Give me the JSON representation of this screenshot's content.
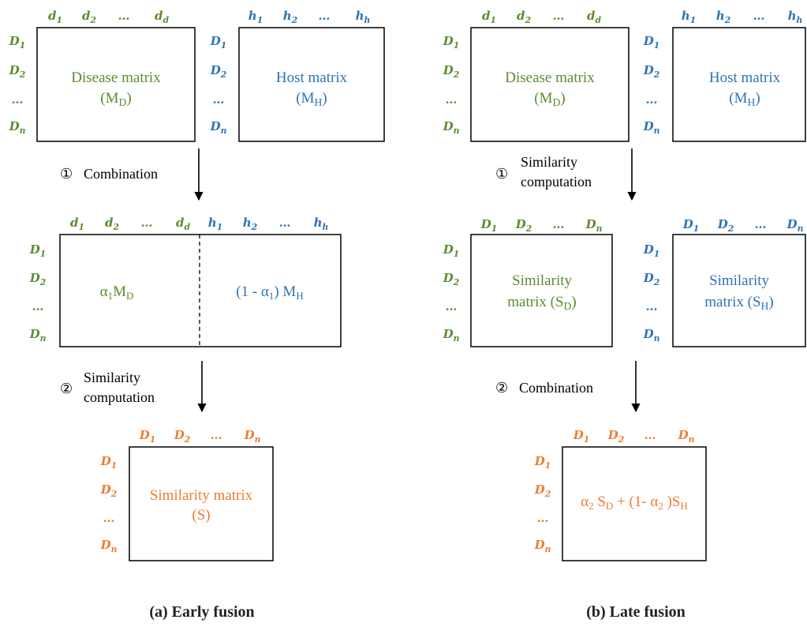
{
  "colors": {
    "disease": "#5b8c32",
    "host": "#2e74b5",
    "similarity": "#ed7d31",
    "line": "#000000"
  },
  "panels": [
    {
      "caption": "(a) Early fusion",
      "top_left": {
        "cols": [
          "d1",
          "d2",
          "…",
          "dd"
        ],
        "rows": [
          "D1",
          "D2",
          "…",
          "Dn"
        ],
        "line1": "Disease matrix",
        "line2": "(MD)"
      },
      "top_right": {
        "cols": [
          "h1",
          "h2",
          "…",
          "hh"
        ],
        "rows": [
          "D1",
          "D2",
          "…",
          "Dn"
        ],
        "line1": "Host matrix",
        "line2": "(MH)"
      },
      "step1": {
        "marker": "①",
        "label": [
          "Combination"
        ]
      },
      "middle": {
        "cols_left": [
          "d1",
          "d2",
          "…",
          "dd"
        ],
        "cols_right": [
          "h1",
          "h2",
          "…",
          "hh"
        ],
        "rows": [
          "D1",
          "D2",
          "…",
          "Dn"
        ],
        "left_text": "α1MD",
        "right_text": "(1 - α1) MH"
      },
      "step2": {
        "marker": "②",
        "label": [
          "Similarity",
          "computation"
        ]
      },
      "bottom": {
        "cols": [
          "D1",
          "D2",
          "…",
          "Dn"
        ],
        "rows": [
          "D1",
          "D2",
          "…",
          "Dn"
        ],
        "line1": "Similarity matrix",
        "line2": "(S)"
      }
    },
    {
      "caption": "(b) Late fusion",
      "top_left": {
        "cols": [
          "d1",
          "d2",
          "…",
          "dd"
        ],
        "rows": [
          "D1",
          "D2",
          "…",
          "Dn"
        ],
        "line1": "Disease matrix",
        "line2": "(MD)"
      },
      "top_right": {
        "cols": [
          "h1",
          "h2",
          "…",
          "hh"
        ],
        "rows": [
          "D1",
          "D2",
          "…",
          "Dn"
        ],
        "line1": "Host matrix",
        "line2": "(MH)"
      },
      "step1": {
        "marker": "①",
        "label": [
          "Similarity",
          "computation"
        ]
      },
      "middle_left": {
        "cols": [
          "D1",
          "D2",
          "…",
          "Dn"
        ],
        "rows": [
          "D1",
          "D2",
          "…",
          "Dn"
        ],
        "line1": "Similarity",
        "line2": "matrix (SD)"
      },
      "middle_right": {
        "cols": [
          "D1",
          "D2",
          "…",
          "Dn"
        ],
        "rows": [
          "D1",
          "D2",
          "…",
          "Dn"
        ],
        "line1": "Similarity",
        "line2": "matrix (SH)"
      },
      "step2": {
        "marker": "②",
        "label": [
          "Combination"
        ]
      },
      "bottom": {
        "cols": [
          "D1",
          "D2",
          "…",
          "Dn"
        ],
        "rows": [
          "D1",
          "D2",
          "…",
          "Dn"
        ],
        "formula": "α2 SD + (1- α2 )SH"
      }
    }
  ]
}
